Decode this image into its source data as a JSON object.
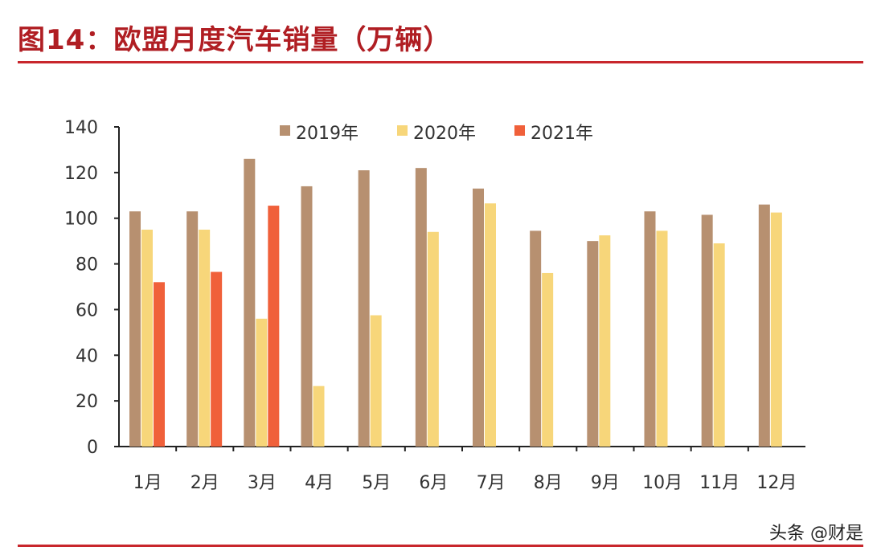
{
  "header": {
    "title": "图14：欧盟月度汽车销量（万辆）"
  },
  "watermark": "头条 @财是",
  "colors": {
    "accent": "#c8262c",
    "s2019": "#b79070",
    "s2020": "#f7d67a",
    "s2021": "#f0603a"
  },
  "chart_data": {
    "type": "bar",
    "title": "图14：欧盟月度汽车销量（万辆）",
    "xlabel": "",
    "ylabel": "",
    "ylim": [
      0,
      140
    ],
    "yticks": [
      0,
      20,
      40,
      60,
      80,
      100,
      120,
      140
    ],
    "grid": false,
    "legend_position": "top",
    "categories": [
      "1月",
      "2月",
      "3月",
      "4月",
      "5月",
      "6月",
      "7月",
      "8月",
      "9月",
      "10月",
      "11月",
      "12月"
    ],
    "series": [
      {
        "name": "2019年",
        "color": "#b79070",
        "values": [
          103,
          103,
          126,
          114,
          121,
          122,
          113,
          94.5,
          90,
          103,
          101.5,
          106
        ]
      },
      {
        "name": "2020年",
        "color": "#f7d67a",
        "values": [
          95,
          95,
          56,
          26.5,
          57.5,
          94,
          106.5,
          76,
          92.5,
          94.5,
          89,
          102.5
        ]
      },
      {
        "name": "2021年",
        "color": "#f0603a",
        "values": [
          72,
          76.5,
          105.5,
          null,
          null,
          null,
          null,
          null,
          null,
          null,
          null,
          null
        ]
      }
    ]
  }
}
